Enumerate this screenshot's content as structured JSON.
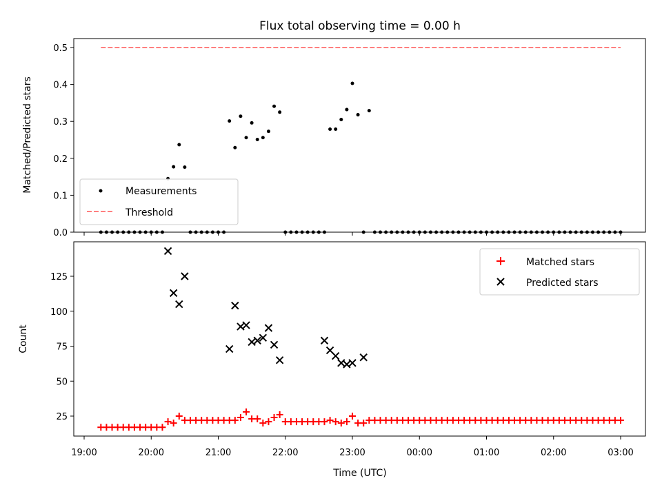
{
  "title": "Flux total observing time = 0.00 h",
  "chart_data": [
    {
      "type": "scatter",
      "ylabel": "Matched/Predicted stars",
      "xlabel": "",
      "ylim": [
        0,
        0.52
      ],
      "yticks": [
        "0.0",
        "0.1",
        "0.2",
        "0.3",
        "0.4",
        "0.5"
      ],
      "legend_position": "lower-left",
      "series": [
        {
          "name": "Measurements",
          "x": [
            "19:15",
            "19:20",
            "19:25",
            "19:30",
            "19:35",
            "19:40",
            "19:45",
            "19:50",
            "19:55",
            "20:00",
            "20:05",
            "20:10",
            "20:15",
            "20:20",
            "20:25",
            "20:30",
            "20:35",
            "20:40",
            "20:45",
            "20:50",
            "20:55",
            "21:00",
            "21:05",
            "21:10",
            "21:15",
            "21:20",
            "21:25",
            "21:30",
            "21:35",
            "21:40",
            "21:45",
            "21:50",
            "21:55",
            "22:00",
            "22:05",
            "22:10",
            "22:15",
            "22:20",
            "22:25",
            "22:30",
            "22:35",
            "22:40",
            "22:45",
            "22:50",
            "22:55",
            "23:00",
            "23:05",
            "23:10",
            "23:15",
            "23:20",
            "23:25",
            "23:30",
            "23:35",
            "23:40",
            "23:45",
            "23:50",
            "23:55",
            "00:00",
            "00:05",
            "00:10",
            "00:15",
            "00:20",
            "00:25",
            "00:30",
            "00:35",
            "00:40",
            "00:45",
            "00:50",
            "00:55",
            "01:00",
            "01:05",
            "01:10",
            "01:15",
            "01:20",
            "01:25",
            "01:30",
            "01:35",
            "01:40",
            "01:45",
            "01:50",
            "01:55",
            "02:00",
            "02:05",
            "02:10",
            "02:15",
            "02:20",
            "02:25",
            "02:30",
            "02:35",
            "02:40",
            "02:45",
            "02:50",
            "02:55",
            "03:00"
          ],
          "y": [
            0,
            0,
            0,
            0,
            0,
            0,
            0,
            0,
            0,
            0,
            0,
            0,
            0.145,
            0.177,
            0.237,
            0.176,
            0,
            0,
            0,
            0,
            0,
            0,
            0,
            0.301,
            0.229,
            0.314,
            0.256,
            0.296,
            0.251,
            0.256,
            0.273,
            0.341,
            0.325,
            0,
            0,
            0,
            0,
            0,
            0,
            0,
            0,
            0.279,
            0.279,
            0.305,
            0.332,
            0.403,
            0.318,
            0,
            0.329,
            0,
            0,
            0,
            0,
            0,
            0,
            0,
            0,
            0,
            0,
            0,
            0,
            0,
            0,
            0,
            0,
            0,
            0,
            0,
            0,
            0,
            0,
            0,
            0,
            0,
            0,
            0,
            0,
            0,
            0,
            0,
            0,
            0,
            0,
            0,
            0,
            0,
            0,
            0,
            0,
            0,
            0,
            0,
            0,
            0
          ]
        },
        {
          "name": "Threshold",
          "x": [
            "19:15",
            "03:00"
          ],
          "y": [
            0.5,
            0.5
          ],
          "style": "dashed",
          "color": "#ff7f7f"
        }
      ]
    },
    {
      "type": "scatter",
      "ylabel": "Count",
      "xlabel": "Time (UTC)",
      "ylim": [
        10,
        148
      ],
      "yticks": [
        "25",
        "50",
        "75",
        "100",
        "125"
      ],
      "xticks": [
        "19:00",
        "20:00",
        "21:00",
        "22:00",
        "23:00",
        "00:00",
        "01:00",
        "02:00",
        "03:00"
      ],
      "legend_position": "top-right",
      "series": [
        {
          "name": "Matched stars",
          "marker": "+",
          "color": "#ff0000",
          "x": [
            "19:15",
            "19:20",
            "19:25",
            "19:30",
            "19:35",
            "19:40",
            "19:45",
            "19:50",
            "19:55",
            "20:00",
            "20:05",
            "20:10",
            "20:15",
            "20:20",
            "20:25",
            "20:30",
            "20:35",
            "20:40",
            "20:45",
            "20:50",
            "20:55",
            "21:00",
            "21:05",
            "21:10",
            "21:15",
            "21:20",
            "21:25",
            "21:30",
            "21:35",
            "21:40",
            "21:45",
            "21:50",
            "21:55",
            "22:00",
            "22:05",
            "22:10",
            "22:15",
            "22:20",
            "22:25",
            "22:30",
            "22:35",
            "22:40",
            "22:45",
            "22:50",
            "22:55",
            "23:00",
            "23:05",
            "23:10",
            "23:15",
            "23:20",
            "23:25",
            "23:30",
            "23:35",
            "23:40",
            "23:45",
            "23:50",
            "23:55",
            "00:00",
            "00:05",
            "00:10",
            "00:15",
            "00:20",
            "00:25",
            "00:30",
            "00:35",
            "00:40",
            "00:45",
            "00:50",
            "00:55",
            "01:00",
            "01:05",
            "01:10",
            "01:15",
            "01:20",
            "01:25",
            "01:30",
            "01:35",
            "01:40",
            "01:45",
            "01:50",
            "01:55",
            "02:00",
            "02:05",
            "02:10",
            "02:15",
            "02:20",
            "02:25",
            "02:30",
            "02:35",
            "02:40",
            "02:45",
            "02:50",
            "02:55",
            "03:00"
          ],
          "y": [
            17,
            17,
            17,
            17,
            17,
            17,
            17,
            17,
            17,
            17,
            17,
            17,
            21,
            20,
            25,
            22,
            22,
            22,
            22,
            22,
            22,
            22,
            22,
            22,
            22,
            24,
            28,
            23,
            23,
            20,
            21,
            24,
            26,
            21,
            21,
            21,
            21,
            21,
            21,
            21,
            21,
            22,
            21,
            20,
            21,
            25,
            20,
            20,
            22,
            22,
            22,
            22,
            22,
            22,
            22,
            22,
            22,
            22,
            22,
            22,
            22,
            22,
            22,
            22,
            22,
            22,
            22,
            22,
            22,
            22,
            22,
            22,
            22,
            22,
            22,
            22,
            22,
            22,
            22,
            22,
            22,
            22,
            22,
            22,
            22,
            22,
            22,
            22,
            22,
            22,
            22,
            22,
            22,
            22
          ]
        },
        {
          "name": "Predicted stars",
          "marker": "x",
          "color": "#000000",
          "x": [
            "20:15",
            "20:20",
            "20:25",
            "20:30",
            "21:10",
            "21:15",
            "21:20",
            "21:25",
            "21:30",
            "21:35",
            "21:40",
            "21:45",
            "21:50",
            "21:55",
            "22:35",
            "22:40",
            "22:45",
            "22:50",
            "22:55",
            "23:00",
            "23:10"
          ],
          "y": [
            143,
            113,
            105,
            125,
            73,
            104,
            89,
            90,
            78,
            79,
            81,
            88,
            76,
            65,
            79,
            72,
            68,
            63,
            62,
            63,
            67
          ]
        }
      ]
    }
  ]
}
